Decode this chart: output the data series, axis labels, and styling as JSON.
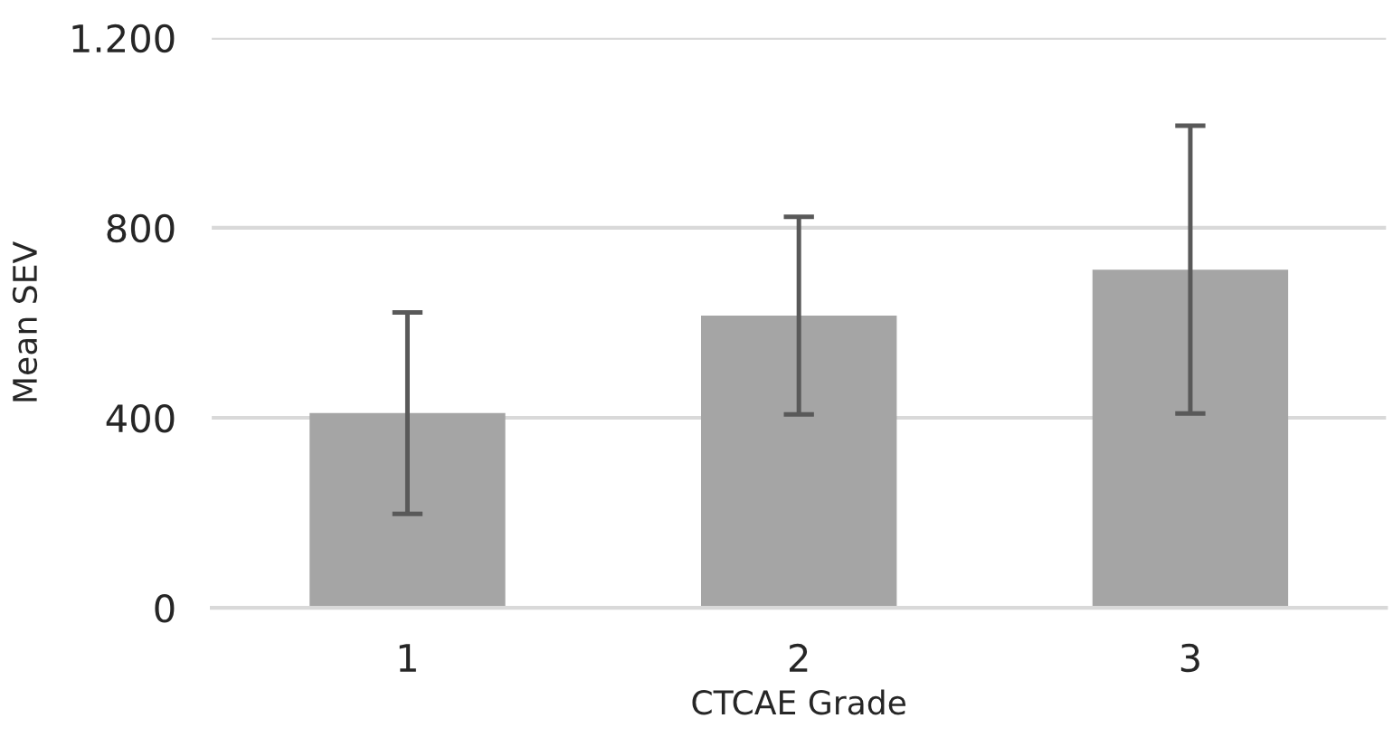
{
  "chart_data": {
    "type": "bar",
    "xlabel": "CTCAE Grade",
    "ylabel": "Mean SEV",
    "categories": [
      "1",
      "2",
      "3"
    ],
    "values": [
      410,
      615,
      712
    ],
    "errors": [
      212,
      208,
      303
    ],
    "color": "#a5a5a5",
    "ylim": [
      0,
      1200
    ],
    "yticks": [
      0,
      400,
      800,
      {
        "value": 1200,
        "label": "1.200"
      }
    ],
    "grid": "y",
    "legend": false
  }
}
